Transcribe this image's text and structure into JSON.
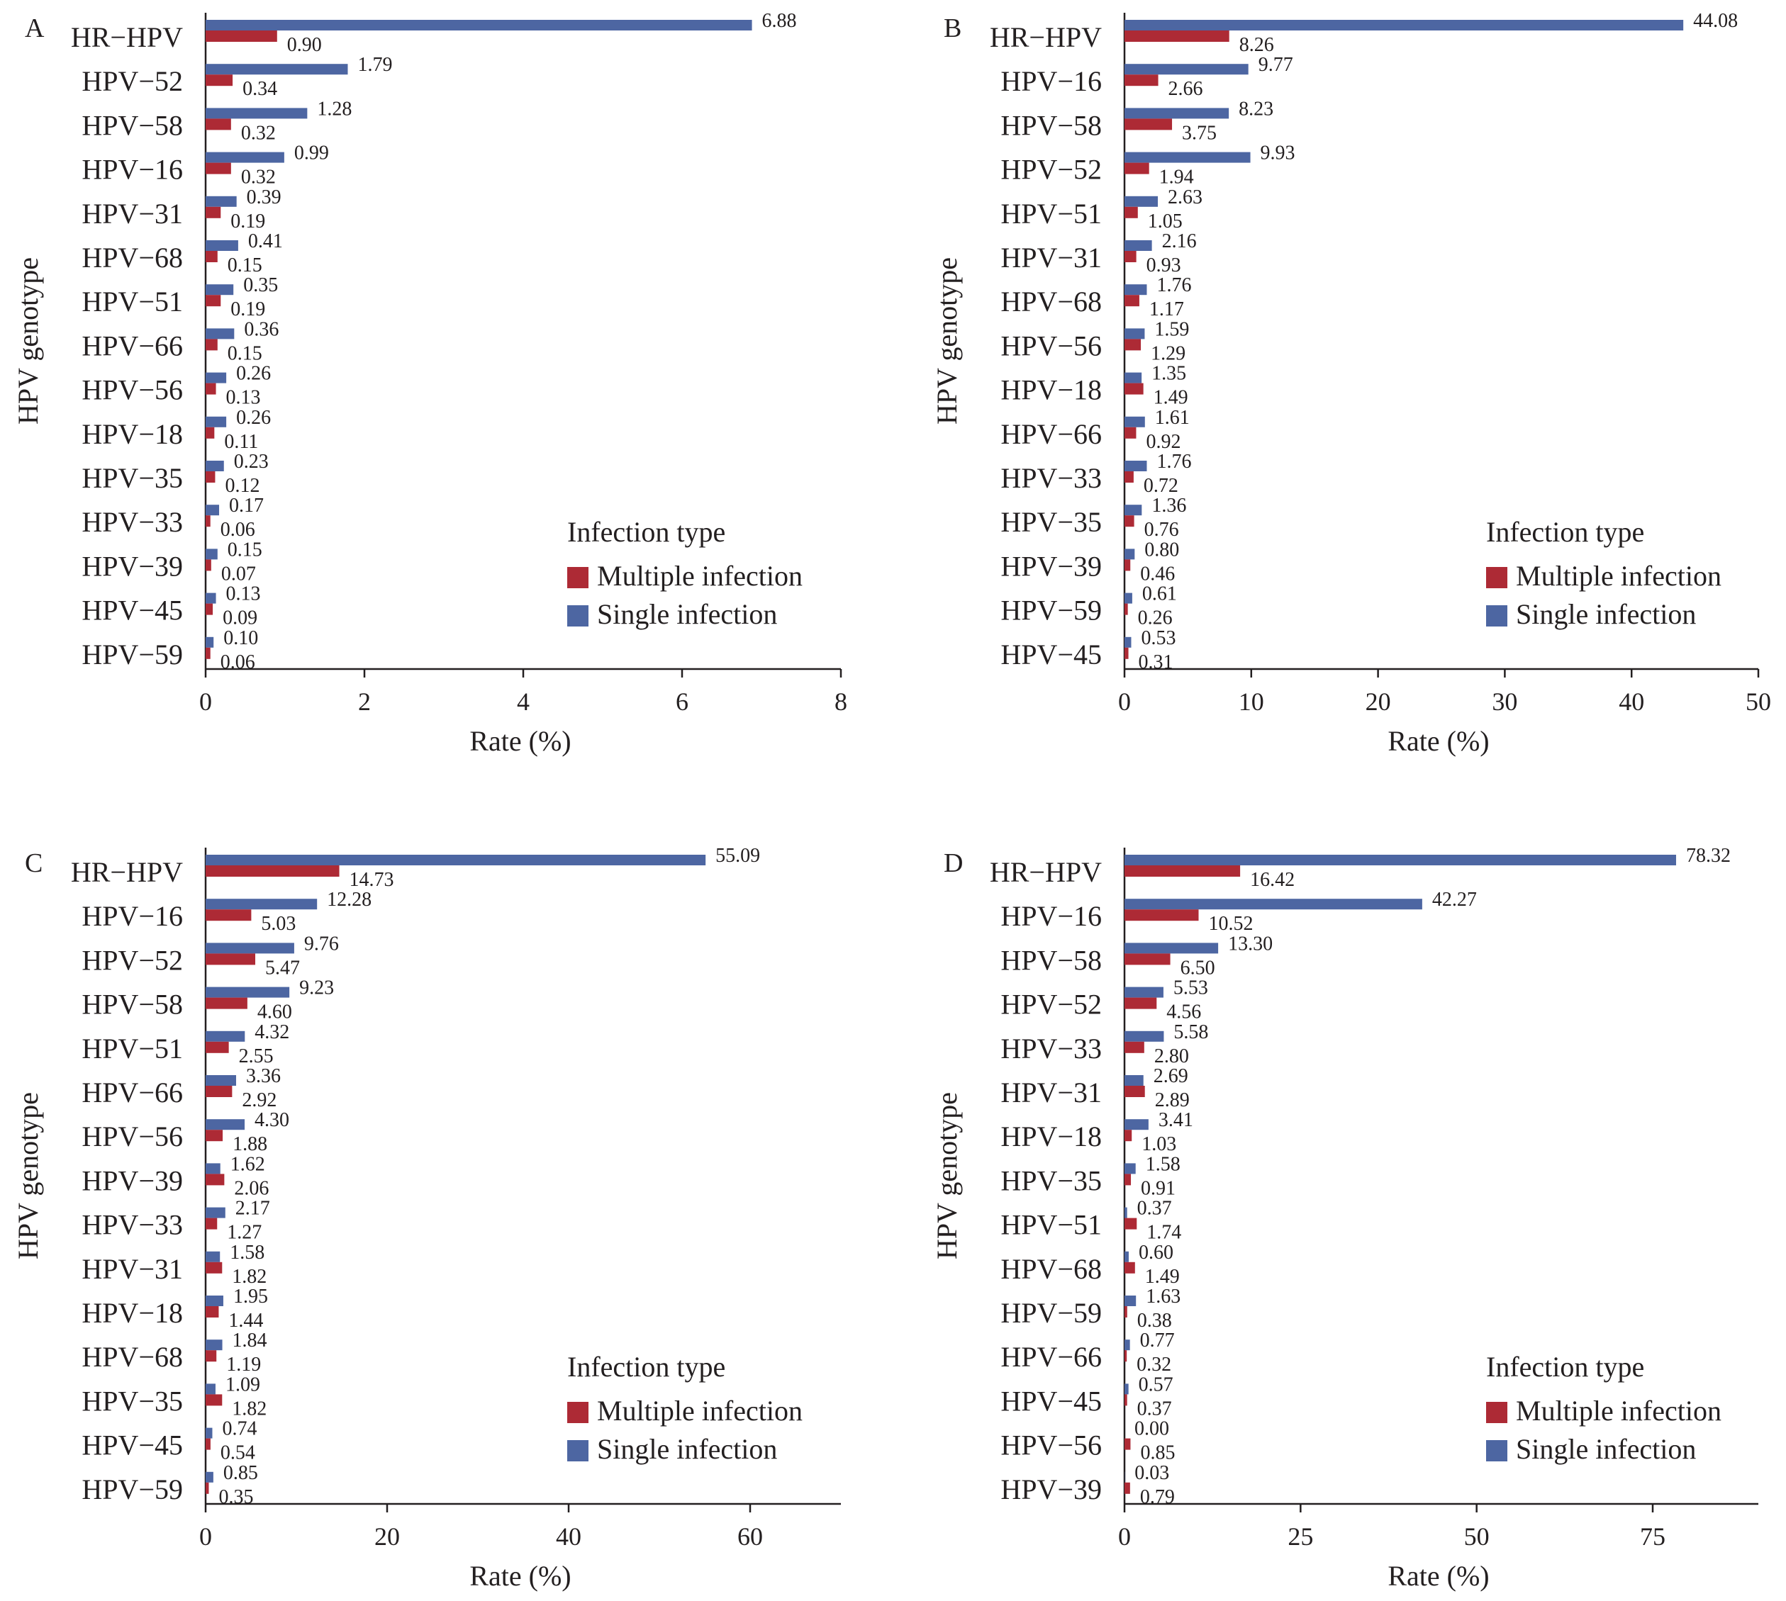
{
  "legend_title": "Infection type",
  "colors": {
    "multiple": "#ad2a35",
    "single": "#4d66a2",
    "axis": "#231f20"
  },
  "chart_data": [
    {
      "panel": "A",
      "type": "bar",
      "orientation": "horizontal",
      "ylabel": "HPV genotype",
      "xlabel": "Rate (%)",
      "xlim": [
        0,
        8
      ],
      "xticks": [
        "0",
        "2",
        "4",
        "6",
        "8"
      ],
      "categories": [
        "HR−HPV",
        "HPV−52",
        "HPV−58",
        "HPV−16",
        "HPV−31",
        "HPV−68",
        "HPV−51",
        "HPV−66",
        "HPV−56",
        "HPV−18",
        "HPV−35",
        "HPV−33",
        "HPV−39",
        "HPV−45",
        "HPV−59"
      ],
      "series": [
        {
          "name": "Single infection",
          "values": [
            6.88,
            1.79,
            1.28,
            0.99,
            0.39,
            0.41,
            0.35,
            0.36,
            0.26,
            0.26,
            0.23,
            0.17,
            0.15,
            0.13,
            0.1
          ],
          "labels": [
            "6.88",
            "1.79",
            "1.28",
            "0.99",
            "0.39",
            "0.41",
            "0.35",
            "0.36",
            "0.26",
            "0.26",
            "0.23",
            "0.17",
            "0.15",
            "0.13",
            "0.10"
          ]
        },
        {
          "name": "Multiple infection",
          "values": [
            0.9,
            0.34,
            0.32,
            0.32,
            0.19,
            0.15,
            0.19,
            0.15,
            0.13,
            0.11,
            0.12,
            0.06,
            0.07,
            0.09,
            0.06
          ],
          "labels": [
            "0.90",
            "0.34",
            "0.32",
            "0.32",
            "0.19",
            "0.15",
            "0.19",
            "0.15",
            "0.13",
            "0.11",
            "0.12",
            "0.06",
            "0.07",
            "0.09",
            "0.06"
          ]
        }
      ],
      "legend": {
        "title": "Infection type",
        "position": "bottom-right",
        "entries": [
          "Multiple infection",
          "Single infection"
        ]
      }
    },
    {
      "panel": "B",
      "type": "bar",
      "orientation": "horizontal",
      "ylabel": "HPV genotype",
      "xlabel": "Rate (%)",
      "xlim": [
        0,
        50
      ],
      "xticks": [
        "0",
        "10",
        "20",
        "30",
        "40",
        "50"
      ],
      "categories": [
        "HR−HPV",
        "HPV−16",
        "HPV−58",
        "HPV−52",
        "HPV−51",
        "HPV−31",
        "HPV−68",
        "HPV−56",
        "HPV−18",
        "HPV−66",
        "HPV−33",
        "HPV−35",
        "HPV−39",
        "HPV−59",
        "HPV−45"
      ],
      "series": [
        {
          "name": "Single infection",
          "values": [
            44.08,
            9.77,
            8.23,
            9.93,
            2.63,
            2.16,
            1.76,
            1.59,
            1.35,
            1.61,
            1.76,
            1.36,
            0.8,
            0.61,
            0.53
          ],
          "labels": [
            "44.08",
            "9.77",
            "8.23",
            "9.93",
            "2.63",
            "2.16",
            "1.76",
            "1.59",
            "1.35",
            "1.61",
            "1.76",
            "1.36",
            "0.80",
            "0.61",
            "0.53"
          ]
        },
        {
          "name": "Multiple infection",
          "values": [
            8.26,
            2.66,
            3.75,
            1.94,
            1.05,
            0.93,
            1.17,
            1.29,
            1.49,
            0.92,
            0.72,
            0.76,
            0.46,
            0.26,
            0.31
          ],
          "labels": [
            "8.26",
            "2.66",
            "3.75",
            "1.94",
            "1.05",
            "0.93",
            "1.17",
            "1.29",
            "1.49",
            "0.92",
            "0.72",
            "0.76",
            "0.46",
            "0.26",
            "0.31"
          ]
        }
      ],
      "legend": {
        "title": "Infection type",
        "position": "bottom-right",
        "entries": [
          "Multiple infection",
          "Single infection"
        ]
      }
    },
    {
      "panel": "C",
      "type": "bar",
      "orientation": "horizontal",
      "ylabel": "HPV genotype",
      "xlabel": "Rate (%)",
      "xlim": [
        0,
        70
      ],
      "xticks": [
        "0",
        "20",
        "40",
        "60"
      ],
      "categories": [
        "HR−HPV",
        "HPV−16",
        "HPV−52",
        "HPV−58",
        "HPV−51",
        "HPV−66",
        "HPV−56",
        "HPV−39",
        "HPV−33",
        "HPV−31",
        "HPV−18",
        "HPV−68",
        "HPV−35",
        "HPV−45",
        "HPV−59"
      ],
      "series": [
        {
          "name": "Single infection",
          "values": [
            55.09,
            12.28,
            9.76,
            9.23,
            4.32,
            3.36,
            4.3,
            1.62,
            2.17,
            1.58,
            1.95,
            1.84,
            1.09,
            0.74,
            0.85
          ],
          "labels": [
            "55.09",
            "12.28",
            "9.76",
            "9.23",
            "4.32",
            "3.36",
            "4.30",
            "1.62",
            "2.17",
            "1.58",
            "1.95",
            "1.84",
            "1.09",
            "0.74",
            "0.85"
          ]
        },
        {
          "name": "Multiple infection",
          "values": [
            14.73,
            5.03,
            5.47,
            4.6,
            2.55,
            2.92,
            1.88,
            2.06,
            1.27,
            1.82,
            1.44,
            1.19,
            1.82,
            0.54,
            0.35
          ],
          "labels": [
            "14.73",
            "5.03",
            "5.47",
            "4.60",
            "2.55",
            "2.92",
            "1.88",
            "2.06",
            "1.27",
            "1.82",
            "1.44",
            "1.19",
            "1.82",
            "0.54",
            "0.35"
          ]
        }
      ],
      "legend": {
        "title": "Infection type",
        "position": "bottom-right",
        "entries": [
          "Multiple infection",
          "Single infection"
        ]
      }
    },
    {
      "panel": "D",
      "type": "bar",
      "orientation": "horizontal",
      "ylabel": "HPV genotype",
      "xlabel": "Rate (%)",
      "xlim": [
        0,
        90
      ],
      "xticks": [
        "0",
        "25",
        "50",
        "75"
      ],
      "categories": [
        "HR−HPV",
        "HPV−16",
        "HPV−58",
        "HPV−52",
        "HPV−33",
        "HPV−31",
        "HPV−18",
        "HPV−35",
        "HPV−51",
        "HPV−68",
        "HPV−59",
        "HPV−66",
        "HPV−45",
        "HPV−56",
        "HPV−39"
      ],
      "series": [
        {
          "name": "Single infection",
          "values": [
            78.32,
            42.27,
            13.3,
            5.53,
            5.58,
            2.69,
            3.41,
            1.58,
            0.37,
            0.6,
            1.63,
            0.77,
            0.57,
            0.0,
            0.03
          ],
          "labels": [
            "78.32",
            "42.27",
            "13.30",
            "5.53",
            "5.58",
            "2.69",
            "3.41",
            "1.58",
            "0.37",
            "0.60",
            "1.63",
            "0.77",
            "0.57",
            "0.00",
            "0.03"
          ]
        },
        {
          "name": "Multiple infection",
          "values": [
            16.42,
            10.52,
            6.5,
            4.56,
            2.8,
            2.89,
            1.03,
            0.91,
            1.74,
            1.49,
            0.38,
            0.32,
            0.37,
            0.85,
            0.79
          ],
          "labels": [
            "16.42",
            "10.52",
            "6.50",
            "4.56",
            "2.80",
            "2.89",
            "1.03",
            "0.91",
            "1.74",
            "1.49",
            "0.38",
            "0.32",
            "0.37",
            "0.85",
            "0.79"
          ]
        }
      ],
      "legend": {
        "title": "Infection type",
        "position": "bottom-right",
        "entries": [
          "Multiple infection",
          "Single infection"
        ]
      }
    }
  ]
}
